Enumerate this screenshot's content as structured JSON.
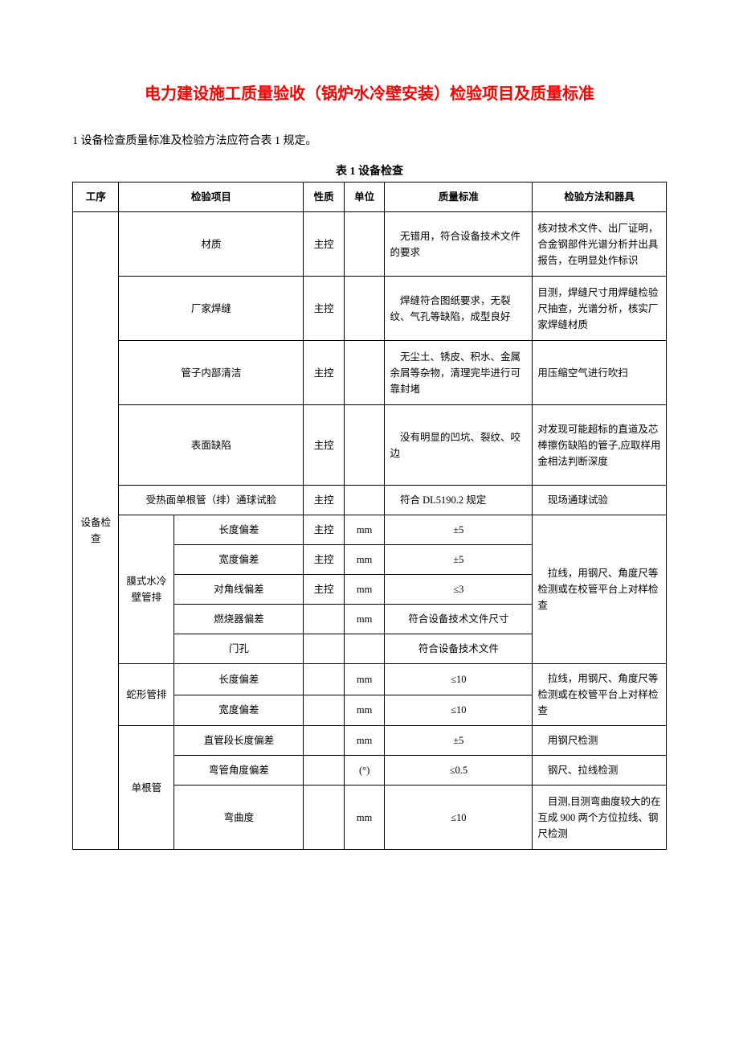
{
  "title": {
    "text": "电力建设施工质量验收（锅炉水冷壁安装）检验项目及质量标准",
    "color": "#ff0000"
  },
  "intro": "1 设备检查质量标准及检验方法应符合表 1 规定。",
  "caption": "表 1 设备检查",
  "header": {
    "proc": "工序",
    "check": "检验项目",
    "nature": "性质",
    "unit": "单位",
    "std": "质量标准",
    "method": "检验方法和器具"
  },
  "procName": "设备检查",
  "rows": {
    "r1": {
      "item": "材质",
      "nature": "主控",
      "unit": "",
      "std": "无错用，符合设备技术文件的要求",
      "method": "核对技术文件、出厂证明，合金钢部件光谱分析并出具报告，在明显处作标识"
    },
    "r2": {
      "item": "厂家焊缝",
      "nature": "主控",
      "unit": "",
      "std": "焊缝符合图纸要求，无裂纹、气孔等缺陷，成型良好",
      "method": "目测，焊缝尺寸用焊缝检验尺抽查，光谱分析，核实厂家焊缝材质"
    },
    "r3": {
      "item": "管子内部清洁",
      "nature": "主控",
      "unit": "",
      "std": "无尘土、锈皮、积水、金属余屑等杂物，清理完毕进行可靠封堵",
      "method": "用压缩空气进行吹扫"
    },
    "r4": {
      "item": "表面缺陷",
      "nature": "主控",
      "unit": "",
      "std": "没有明显的凹坑、裂纹、咬边",
      "method": "对发现可能超标的直道及芯棒擦伤缺陷的管子,应取样用金相法判断深度"
    },
    "r5": {
      "item": "受热面单根管（排）通球试脸",
      "nature": "主控",
      "unit": "",
      "std": "符合 DL5190.2 规定",
      "method": "现场通球试验"
    },
    "g1": {
      "group": "膜式水冷壁管排",
      "a": {
        "item": "长度偏差",
        "nature": "主控",
        "unit": "mm",
        "std": "±5"
      },
      "b": {
        "item": "宽度偏差",
        "nature": "主控",
        "unit": "mm",
        "std": "±5"
      },
      "c": {
        "item": "对角线偏差",
        "nature": "主控",
        "unit": "mm",
        "std": "≤3"
      },
      "d": {
        "item": "燃烧器偏差",
        "nature": "",
        "unit": "mm",
        "std": "符合设备技术文件尺寸"
      },
      "e": {
        "item": "门孔",
        "nature": "",
        "unit": "",
        "std": "符合设备技术文件"
      },
      "method": "拉线，用钢尺、角度尺等检测或在校管平台上对样检查"
    },
    "g2": {
      "group": "蛇形管排",
      "a": {
        "item": "长度偏差",
        "nature": "",
        "unit": "mm",
        "std": "≤10"
      },
      "b": {
        "item": "宽度偏差",
        "nature": "",
        "unit": "mm",
        "std": "≤10"
      },
      "method": "拉线，用钢尺、角度尺等检测或在校管平台上对样检查"
    },
    "g3": {
      "group": "单根管",
      "a": {
        "item": "直管段长度偏差",
        "nature": "",
        "unit": "mm",
        "std": "±5",
        "method": "用钢尺检测"
      },
      "b": {
        "item": "弯管角度偏差",
        "nature": "",
        "unit": "(°)",
        "std": "≤0.5",
        "method": "钢尺、拉线检测"
      },
      "c": {
        "item": "弯曲度",
        "nature": "",
        "unit": "mm",
        "std": "≤10",
        "method": "目测,目测弯曲度较大的在互成 900 两个方位拉线、钢尺检测"
      }
    }
  }
}
